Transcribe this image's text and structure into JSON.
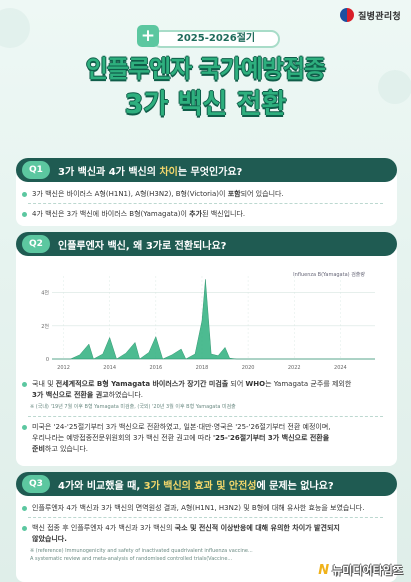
{
  "header": {
    "agency": "질병관리청",
    "season": "2025-2026절기",
    "title_line1": "인플루엔자 국가예방접종",
    "title_line2": "3가 백신 전환"
  },
  "q1": {
    "badge": "Q1",
    "question_pre": "3가 백신과 4가 백신의 ",
    "question_hl": "차이",
    "question_post": "는 무엇인가요?",
    "bullet1_pre": "3가 백신은 바이러스 A형(H1N1), A형(H3N2), B형(Victoria)이 ",
    "bullet1_bold": "포함",
    "bullet1_post": "되어 있습니다.",
    "bullet2_pre": "4가 백신은 3가 백신에 바이러스 B형(Yamagata)이 ",
    "bullet2_bold": "추가",
    "bullet2_post": "된 백신입니다."
  },
  "q2": {
    "badge": "Q2",
    "question": "인플루엔자 백신, 왜 3가로 전환되나요?",
    "bullet1_pre": "국내 및 ",
    "bullet1_bold": "전세계적으로 B형 Yamagata 바이러스가 장기간 미검출",
    "bullet1_mid": " 되어 ",
    "bullet1_bold2": "WHO",
    "bullet1_post": "는 Yamagata 균주를 제외한",
    "bullet1_line2_bold": "3가 백신으로 전환을 권고",
    "bullet1_line2_post": "하였습니다.",
    "note": "※ (국내) '19년 7월 이후 B형 Yamagata 미검출, (국외) '20년 3월 이후 B형 Yamagata 미검출",
    "bullet2_line1": "미국은 '24-'25절기부터 3가 백신으로 전환하였고, 일본·대만·영국은 '25-'26절기부터 전환 예정이며,",
    "bullet2_line2_pre": "우리나라는 예방접종전문위원회의 3가 백신 전환 권고에 따라 ",
    "bullet2_line2_bold": "'25-'26절기부터 3가 백신으로 전환을",
    "bullet2_line3_bold": "준비",
    "bullet2_line3_post": "하고 있습니다."
  },
  "q3": {
    "badge": "Q3",
    "question_pre": "4가와 비교했을 때, ",
    "question_hl": "3가 백신의 효과 및 안전성",
    "question_post": "에 문제는 없나요?",
    "bullet1": "인플루엔자 4가 백신과 3가 백신의 면역원성 결과, A형(H1N1, H3N2) 및 B형에 대해 유사한 효능을 보였습니다.",
    "bullet2_pre": "백신 접종 후 인플루엔자 4가 백신과 3가 백신의 ",
    "bullet2_bold": "국소 및 전신적 이상반응에 대해 유의한 차이가 발견되지",
    "bullet2_line2_bold": "않았습니다.",
    "ref1": "※ (reference) Immunogenicity and safety of inactivated quadrivalent influenza vaccine...",
    "ref2": "A systematic review and meta-analysis of randomised controlled trials(Vaccine..."
  },
  "footer": {
    "brand_mark": "N",
    "brand_text": "뉴미디어타임즈"
  },
  "chart_data": {
    "type": "area",
    "title": "",
    "legend": [
      "Influenza B(Yamagata) 검출량"
    ],
    "x_ticks": [
      "2012",
      "2014",
      "2016",
      "2018",
      "2020",
      "2022",
      "2024"
    ],
    "y_ticks": [
      "0",
      "2천",
      "4천"
    ],
    "ylim": [
      0,
      5000
    ],
    "xlim": [
      2011.5,
      2025.5
    ],
    "series": [
      {
        "name": "Influenza B(Yamagata) 검출량",
        "x": [
          2011.5,
          2012.3,
          2012.7,
          2013.1,
          2013.3,
          2013.7,
          2014.0,
          2014.3,
          2014.7,
          2015.1,
          2015.3,
          2015.7,
          2016.0,
          2016.3,
          2016.7,
          2017.1,
          2017.3,
          2017.7,
          2018.0,
          2018.15,
          2018.4,
          2018.7,
          2019.0,
          2019.2,
          2019.5,
          2020.0,
          2025.5
        ],
        "values": [
          0,
          0,
          250,
          900,
          0,
          300,
          1300,
          0,
          350,
          1000,
          0,
          400,
          1350,
          0,
          250,
          600,
          0,
          300,
          2300,
          4800,
          300,
          200,
          700,
          50,
          0,
          0,
          0
        ]
      }
    ],
    "colors": {
      "fill": "#2eaf7e",
      "grid": "#d7e6e1"
    },
    "grid": true
  }
}
